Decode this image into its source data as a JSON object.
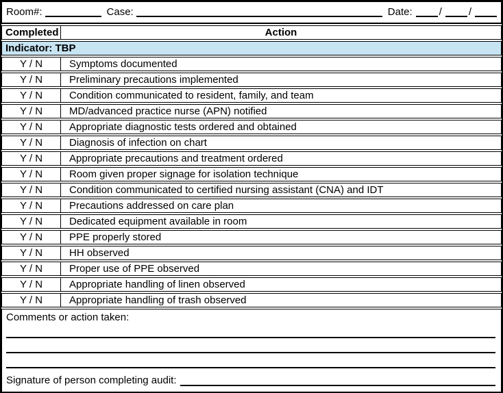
{
  "form": {
    "room_label": "Room#:",
    "case_label": "Case:",
    "date_label": "Date:",
    "date_separator": "/"
  },
  "table": {
    "header": {
      "completed": "Completed",
      "action": "Action"
    },
    "indicator_label": "Indicator: TBP",
    "yn_label": "Y / N",
    "rows": [
      "Symptoms documented",
      "Preliminary precautions implemented",
      "Condition communicated to resident, family, and team",
      "MD/advanced practice nurse (APN) notified",
      "Appropriate diagnostic tests ordered and obtained",
      "Diagnosis of infection on chart",
      "Appropriate precautions and treatment ordered",
      "Room given proper signage for isolation technique",
      "Condition communicated to certified nursing assistant (CNA) and IDT",
      "Precautions addressed on care plan",
      "Dedicated equipment available in room",
      "PPE properly stored",
      "HH observed",
      "Proper use of PPE observed",
      "Appropriate handling of linen observed",
      "Appropriate handling of trash observed"
    ]
  },
  "footer": {
    "comments_label": "Comments or action taken:",
    "signature_label": "Signature of person completing audit:"
  },
  "colors": {
    "indicator_bg": "#c7e4f2",
    "border": "#000000"
  }
}
